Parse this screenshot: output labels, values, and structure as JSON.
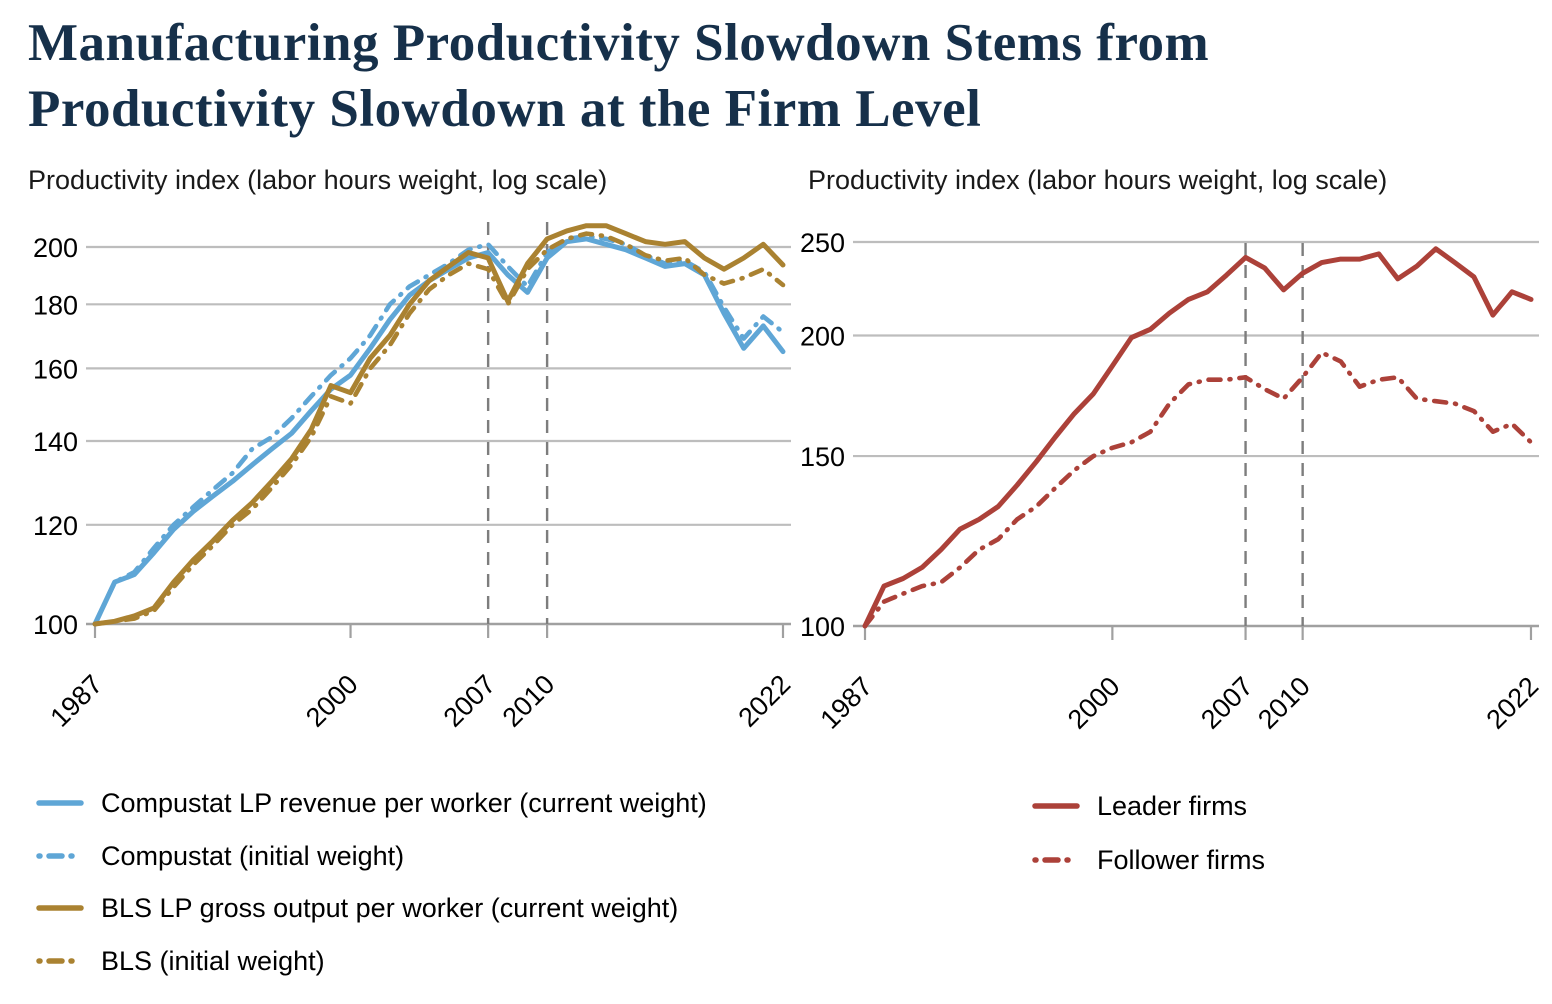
{
  "title_line1": "Manufacturing Productivity Slowdown Stems from",
  "title_line2": "Productivity Slowdown at the Firm Level",
  "colors": {
    "title_navy": "#16304a",
    "compustat_blue": "#5fa6d6",
    "bls_gold": "#aa8231",
    "firm_red": "#ac4139",
    "gridline_gray": "#bdbdbd",
    "axis_gray": "#a0a0a0",
    "vline_gray": "#7d7d7d",
    "tick_text": "#000000"
  },
  "chart_data": [
    {
      "id": "firm-weighting-chart",
      "type": "line",
      "title": "Productivity index (labor hours weight, log scale)",
      "xlabel": "",
      "ylabel": "Productivity index",
      "log_scale": true,
      "grid": true,
      "legend_position": "bottom-left",
      "x": [
        1987,
        1988,
        1989,
        1990,
        1991,
        1992,
        1993,
        1994,
        1995,
        1996,
        1997,
        1998,
        1999,
        2000,
        2001,
        2002,
        2003,
        2004,
        2005,
        2006,
        2007,
        2008,
        2009,
        2010,
        2011,
        2012,
        2013,
        2014,
        2015,
        2016,
        2017,
        2018,
        2019,
        2020,
        2021,
        2022
      ],
      "x_ticks": [
        1987,
        2000,
        2007,
        2010,
        2022
      ],
      "y_ticks": [
        100,
        120,
        140,
        160,
        180,
        200
      ],
      "ylim": [
        100,
        210
      ],
      "vlines": [
        2007,
        2010
      ],
      "series": [
        {
          "name": "Compustat LP revenue per worker (current weight)",
          "color": "#5fa6d6",
          "dash": "solid",
          "values": [
            100,
            108,
            109.5,
            114,
            119,
            123,
            126.5,
            130,
            134,
            138,
            142,
            148,
            154,
            158,
            166,
            175,
            183,
            188,
            192,
            196,
            198,
            190,
            184,
            196,
            202,
            203,
            201,
            199,
            196,
            193,
            194,
            190,
            177,
            166,
            173,
            165
          ]
        },
        {
          "name": "Compustat (initial weight)",
          "color": "#5fa6d6",
          "dash": "dash-dot",
          "values": [
            100,
            108,
            110,
            115,
            120,
            124,
            128,
            132,
            138,
            141,
            146,
            152,
            158,
            163,
            170,
            180,
            186,
            190,
            194,
            199,
            201,
            193,
            186,
            198,
            203,
            204,
            203,
            201,
            197,
            194,
            195,
            191,
            179,
            169,
            176,
            171
          ]
        },
        {
          "name": "BLS LP gross output per worker (current weight)",
          "color": "#aa8231",
          "dash": "solid",
          "values": [
            100,
            100.5,
            101.5,
            103,
            108,
            112.5,
            116.5,
            121,
            125,
            130,
            135.5,
            143,
            155,
            153,
            163,
            170,
            180,
            188,
            193,
            198,
            196,
            181,
            194,
            203,
            206,
            208,
            208,
            205,
            202,
            201,
            202,
            196,
            192,
            196,
            201,
            193.5
          ]
        },
        {
          "name": "BLS (initial weight)",
          "color": "#aa8231",
          "dash": "dash-dot",
          "values": [
            100,
            100.5,
            101,
            102.5,
            107,
            111.5,
            115.5,
            120,
            123.5,
            128.5,
            134,
            141,
            152,
            150,
            160,
            167,
            177,
            185,
            190,
            194,
            192,
            180,
            192,
            199,
            203,
            205,
            204,
            201,
            197,
            195,
            196,
            190,
            187,
            189,
            192,
            186.5
          ]
        }
      ]
    },
    {
      "id": "leader-follower-chart",
      "type": "line",
      "title": "Productivity index (labor hours weight, log scale)",
      "xlabel": "",
      "ylabel": "Productivity index",
      "log_scale": true,
      "grid": true,
      "legend_position": "bottom-left",
      "x": [
        1987,
        1988,
        1989,
        1990,
        1991,
        1992,
        1993,
        1994,
        1995,
        1996,
        1997,
        1998,
        1999,
        2000,
        2001,
        2002,
        2003,
        2004,
        2005,
        2006,
        2007,
        2008,
        2009,
        2010,
        2011,
        2012,
        2013,
        2014,
        2015,
        2016,
        2017,
        2018,
        2019,
        2020,
        2021,
        2022
      ],
      "x_ticks": [
        1987,
        2000,
        2007,
        2010,
        2022
      ],
      "y_ticks": [
        100,
        150,
        200,
        250
      ],
      "ylim": [
        100,
        250
      ],
      "vlines": [
        2007,
        2010
      ],
      "series": [
        {
          "name": "Leader firms",
          "color": "#ac4139",
          "dash": "solid",
          "values": [
            100,
            110,
            112,
            115,
            120,
            126,
            129,
            133,
            140,
            148,
            157,
            166,
            174,
            186,
            199,
            203,
            211,
            218,
            222,
            231,
            241,
            235,
            223,
            232,
            238,
            240,
            240,
            243,
            229,
            236,
            246,
            238,
            230,
            210,
            222,
            218
          ]
        },
        {
          "name": "Follower firms",
          "color": "#ac4139",
          "dash": "dash-dot",
          "values": [
            100,
            106,
            108,
            110,
            111,
            115,
            120,
            123,
            129,
            133,
            139,
            145,
            150,
            153,
            155,
            159,
            170,
            178,
            180,
            180,
            181,
            176,
            172,
            181,
            192,
            188,
            177,
            180,
            181,
            172,
            171,
            170,
            167,
            159,
            162,
            155
          ]
        }
      ]
    }
  ]
}
